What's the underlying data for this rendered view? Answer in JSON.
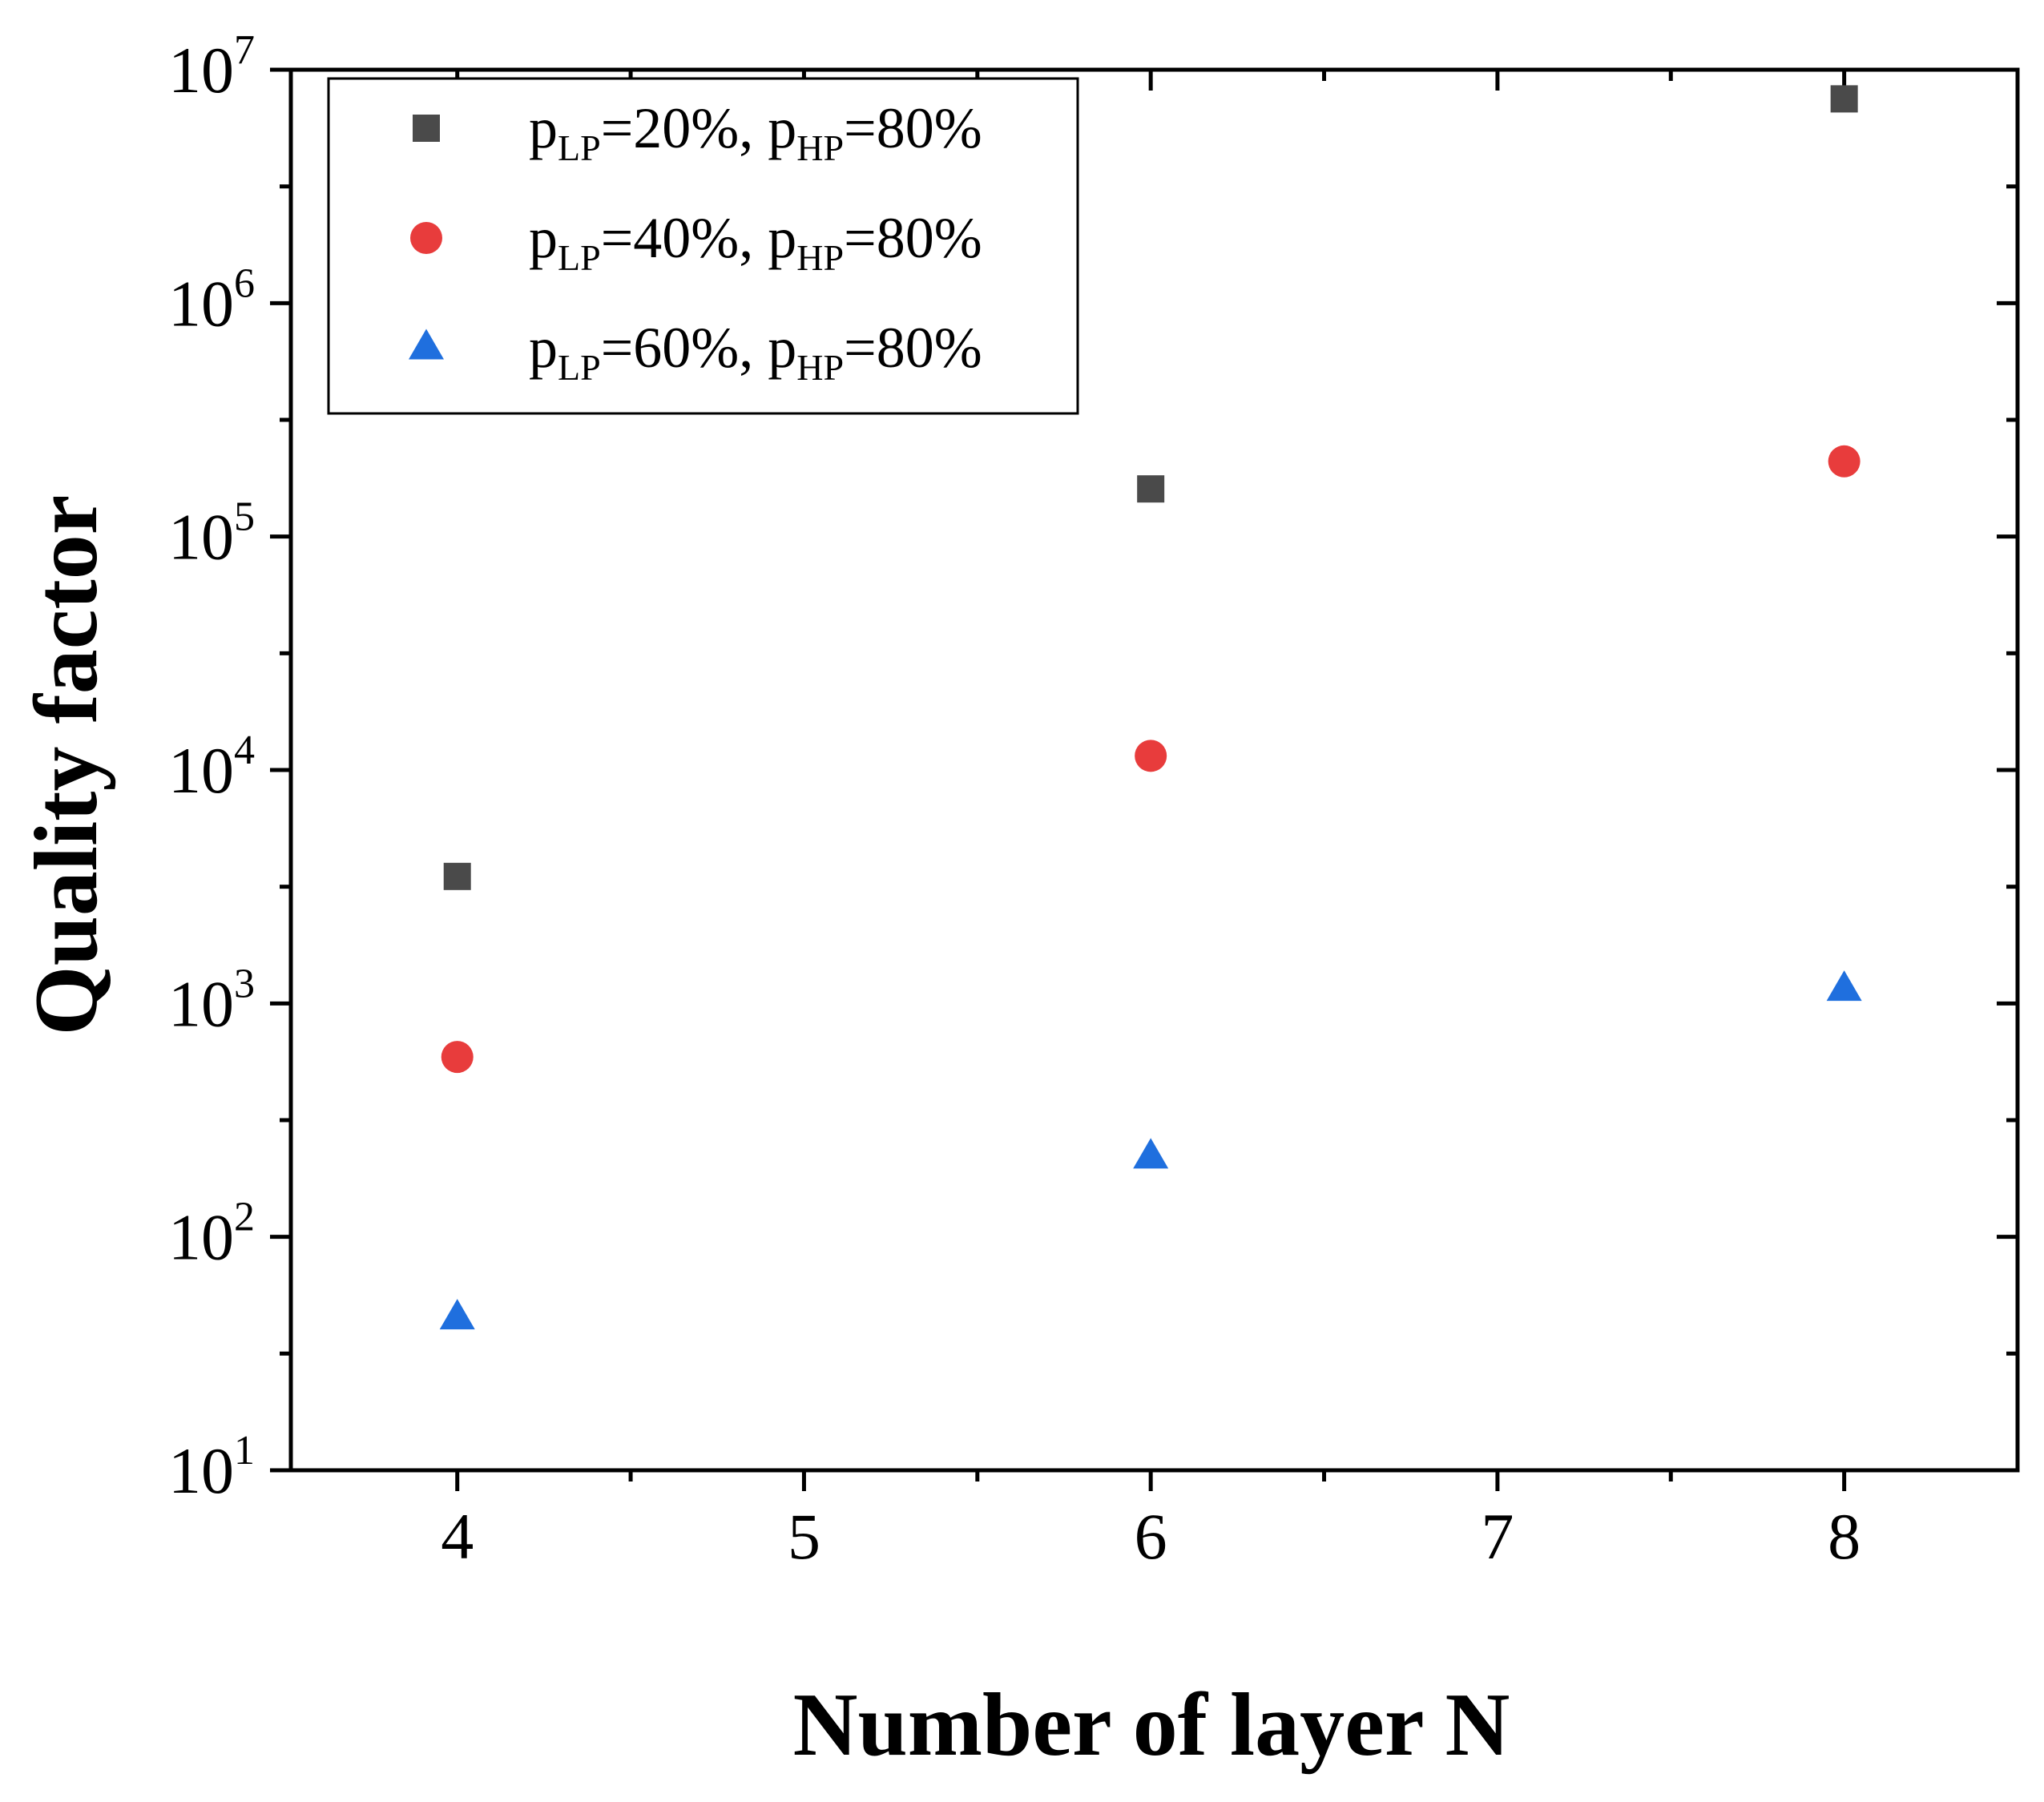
{
  "chart_data": {
    "type": "scatter",
    "xlabel": "Number of layer N",
    "ylabel": "Quality factor",
    "xlim": [
      3.52,
      8.5
    ],
    "ylim": [
      10,
      10000000
    ],
    "yscale": "log",
    "x_ticks": [
      4,
      5,
      6,
      7,
      8
    ],
    "x_tick_labels": [
      "4",
      "5",
      "6",
      "7",
      "8"
    ],
    "y_ticks": [
      10,
      100,
      1000,
      10000,
      100000,
      1000000,
      10000000
    ],
    "y_tick_labels": [
      {
        "base": "10",
        "exp": "1"
      },
      {
        "base": "10",
        "exp": "2"
      },
      {
        "base": "10",
        "exp": "3"
      },
      {
        "base": "10",
        "exp": "4"
      },
      {
        "base": "10",
        "exp": "5"
      },
      {
        "base": "10",
        "exp": "6"
      },
      {
        "base": "10",
        "exp": "7"
      }
    ],
    "grid": false,
    "legend_position": "top-left",
    "series": [
      {
        "label": {
          "p1": "p",
          "s1": "LP",
          "t1": "=20%, ",
          "p2": "p",
          "s2": "HP",
          "t2": "=80%"
        },
        "marker": "square",
        "color": "#4a4a4a",
        "x": [
          4,
          6,
          8
        ],
        "y": [
          3500,
          160000,
          7500000
        ]
      },
      {
        "label": {
          "p1": "p",
          "s1": "LP",
          "t1": "=40%, ",
          "p2": "p",
          "s2": "HP",
          "t2": "=80%"
        },
        "marker": "circle",
        "color": "#e83c3c",
        "x": [
          4,
          6,
          8
        ],
        "y": [
          590,
          11500,
          210000
        ]
      },
      {
        "label": {
          "p1": "p",
          "s1": "LP",
          "t1": "=60%, ",
          "p2": "p",
          "s2": "HP",
          "t2": "=80%"
        },
        "marker": "triangle",
        "color": "#1f6fde",
        "x": [
          4,
          6,
          8
        ],
        "y": [
          45,
          220,
          1150
        ]
      }
    ]
  }
}
